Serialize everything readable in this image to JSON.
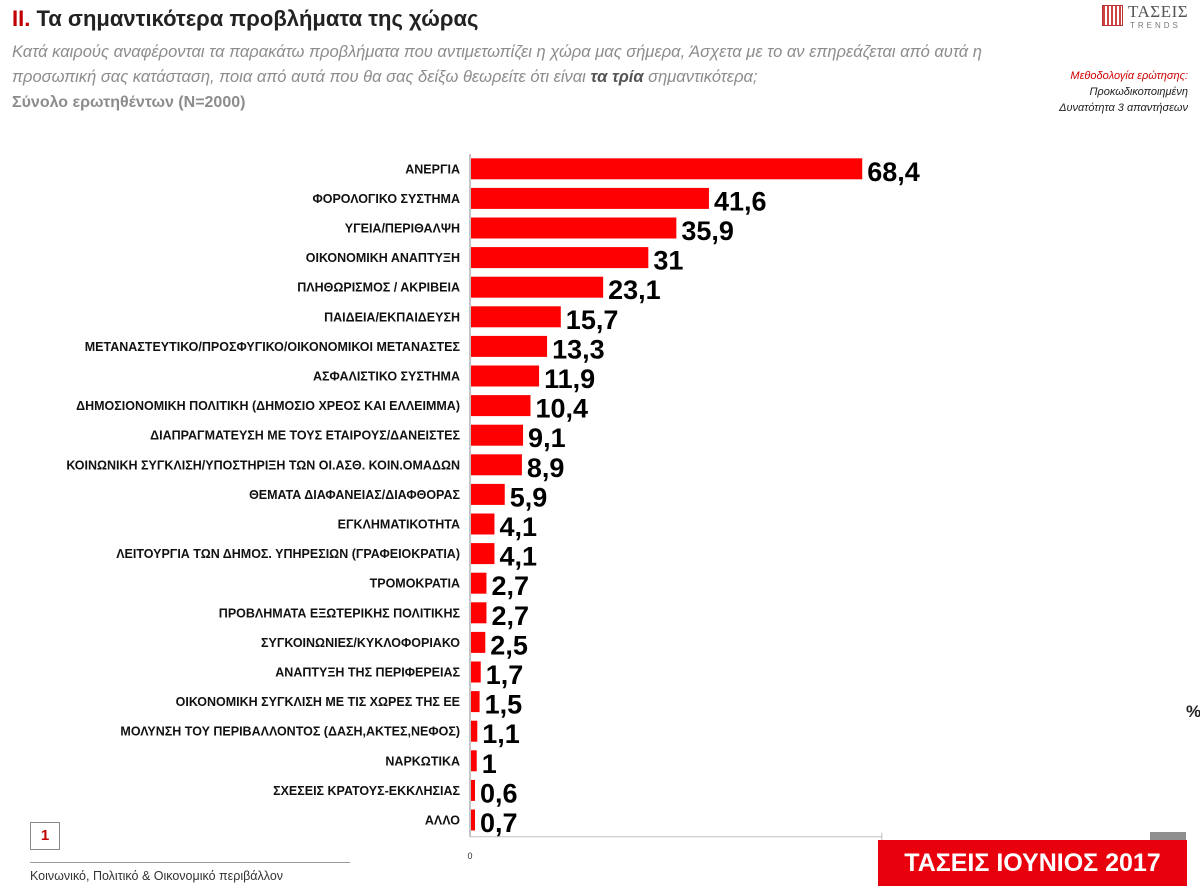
{
  "header": {
    "title_num": "ΙΙ.",
    "title_text": "Τα σημαντικότερα προβλήματα της χώρας",
    "question_part1": "Κατά καιρούς αναφέρονται τα παρακάτω προβλήματα που αντιμετωπίζει η χώρα μας σήμερα, Άσχετα με το αν επηρεάζεται από αυτά η προσωπική σας κατάσταση, ποια από αυτά που θα σας δείξω θεωρείτε ότι είναι ",
    "question_bold": "τα τρία",
    "question_part2": " σημαντικότερα;",
    "base": "Σύνολο ερωτηθέντων (Ν=2000)"
  },
  "logo": {
    "word": "ΤΑΣΕΙΣ",
    "sub": "TRENDS"
  },
  "methodology": {
    "heading": "Μεθοδολογία ερώτησης:",
    "line1": "Προκωδικοποιημένη",
    "line2": "Δυνατότητα 3 απαντήσεων"
  },
  "unit": "%",
  "colors": {
    "bar": "#ff0000",
    "brand": "#e8000d",
    "accent": "#c00000"
  },
  "chart_data": {
    "type": "bar",
    "orientation": "horizontal",
    "categories": [
      "ΑΝΕΡΓΙΑ",
      "ΦΟΡΟΛΟΓΙΚΟ ΣΥΣΤΗΜΑ",
      "ΥΓΕΙΑ/ΠΕΡΙΘΑΛΨΗ",
      "ΟΙΚΟΝΟΜΙΚΗ ΑΝΑΠΤΥΞΗ",
      "ΠΛΗΘΩΡΙΣΜΟΣ / ΑΚΡΙΒΕΙΑ",
      "ΠΑΙΔΕΙΑ/ΕΚΠΑΙΔΕΥΣΗ",
      "ΜΕΤΑΝΑΣΤΕΥΤΙΚΟ/ΠΡΟΣΦΥΓΙΚΟ/ΟΙΚΟΝΟΜΙΚΟΙ ΜΕΤΑΝΑΣΤΕΣ",
      "ΑΣΦΑΛΙΣΤΙΚΟ ΣΥΣΤΗΜΑ",
      "ΔΗΜΟΣΙΟΝΟΜΙΚΗ ΠΟΛΙΤΙΚΗ (ΔΗΜΟΣΙΟ ΧΡΕΟΣ ΚΑΙ ΕΛΛΕΙΜΜΑ)",
      "ΔΙΑΠΡΑΓΜΑΤΕΥΣΗ ΜΕ ΤΟΥΣ ΕΤΑΙΡΟΥΣ/ΔΑΝΕΙΣΤΕΣ",
      "ΚΟΙΝΩΝΙΚΗ ΣΥΓΚΛΙΣΗ/ΥΠΟΣΤΗΡΙΞΗ ΤΩΝ ΟΙ.ΑΣΘ. ΚΟΙΝ.ΟΜΑΔΩΝ",
      "ΘΕΜΑΤΑ ΔΙΑΦΑΝΕΙΑΣ/ΔΙΑΦΘΟΡΑΣ",
      "ΕΓΚΛΗΜΑΤΙΚΟΤΗΤΑ",
      "ΛΕΙΤΟΥΡΓΙΑ ΤΩΝ ΔΗΜΟΣ. ΥΠΗΡΕΣΙΩΝ (ΓΡΑΦΕΙΟΚΡΑΤΙΑ)",
      "ΤΡΟΜΟΚΡΑΤΙΑ",
      "ΠΡΟΒΛΗΜΑΤΑ ΕΞΩΤΕΡΙΚΗΣ ΠΟΛΙΤΙΚΗΣ",
      "ΣΥΓΚΟΙΝΩΝΙΕΣ/ΚΥΚΛΟΦΟΡΙΑΚΟ",
      "ΑΝΑΠΤΥΞΗ ΤΗΣ ΠΕΡΙΦΕΡΕΙΑΣ",
      "ΟΙΚΟΝΟΜΙΚΗ ΣΥΓΚΛΙΣΗ ΜΕ ΤΙΣ ΧΩΡΕΣ ΤΗΣ ΕΕ",
      "ΜΟΛΥΝΣΗ ΤΟΥ ΠΕΡΙΒΑΛΛΟΝΤΟΣ (ΔΑΣΗ,ΑΚΤΕΣ,ΝΕΦΟΣ)",
      "ΝΑΡΚΩΤΙΚΑ",
      "ΣΧΕΣΕΙΣ ΚΡΑΤΟΥΣ-ΕΚΚΛΗΣΙΑΣ",
      "ΑΛΛΟ"
    ],
    "values": [
      68.4,
      41.6,
      35.9,
      31,
      23.1,
      15.7,
      13.3,
      11.9,
      10.4,
      9.1,
      8.9,
      5.9,
      4.1,
      4.1,
      2.7,
      2.7,
      2.5,
      1.7,
      1.5,
      1.1,
      1,
      0.6,
      0.7
    ],
    "value_labels": [
      "68,4",
      "41,6",
      "35,9",
      "31",
      "23,1",
      "15,7",
      "13,3",
      "11,9",
      "10,4",
      "9,1",
      "8,9",
      "5,9",
      "4,1",
      "4,1",
      "2,7",
      "2,7",
      "2,5",
      "1,7",
      "1,5",
      "1,1",
      "1",
      "0,6",
      "0,7"
    ],
    "x_tick_labels": [
      "0"
    ],
    "xlim": [
      0,
      100
    ],
    "title": "",
    "xlabel": "",
    "ylabel": "",
    "grid": false,
    "legend": "none"
  },
  "footer": {
    "page": "1",
    "section": "Κοινωνικό, Πολιτικό & Οικονομικό περιβάλλον",
    "brand": "ΤΑΣΕΙΣ ΙΟΥΝΙΟΣ 2017"
  }
}
